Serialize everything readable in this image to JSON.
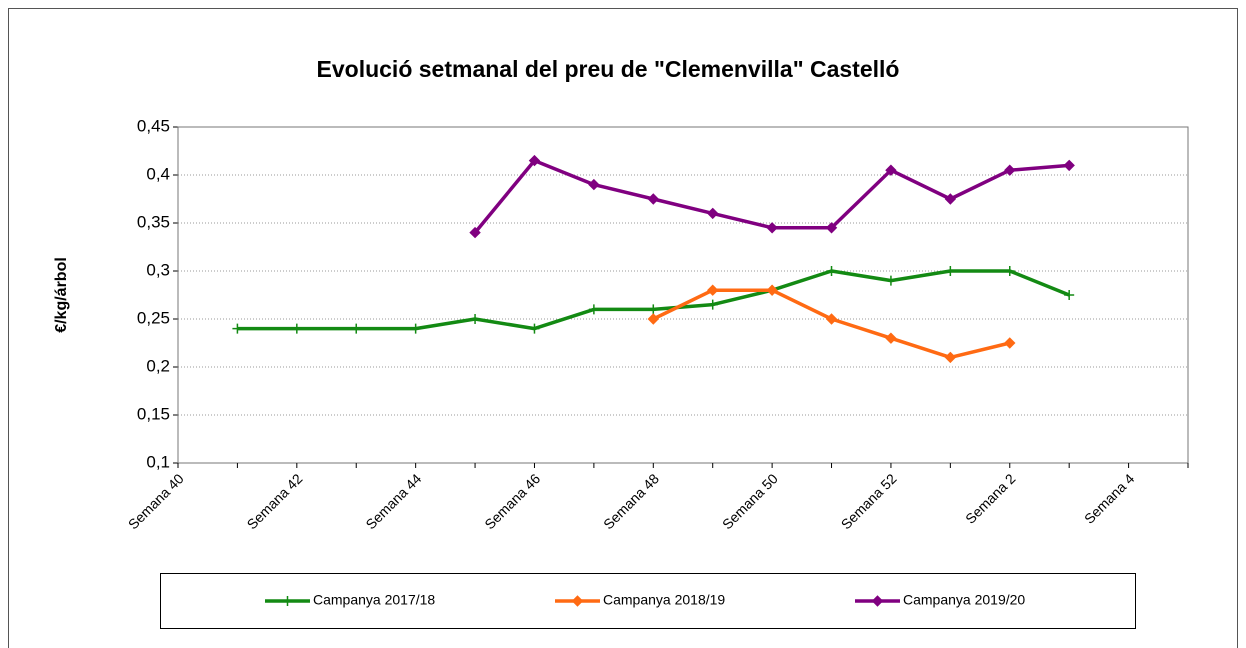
{
  "chart_data": {
    "type": "line",
    "title": "Evolució setmanal del preu de \"Clemenvilla\"    Castelló",
    "y_label": "€/kg/árbol",
    "categories": [
      "Semana 40",
      null,
      "Semana 42",
      null,
      "Semana 44",
      null,
      "Semana 46",
      null,
      "Semana 48",
      null,
      "Semana 50",
      null,
      "Semana 52",
      null,
      "Semana 2",
      null,
      "Semana 4",
      null
    ],
    "series": [
      {
        "name": "Campanya 2017/18",
        "color": "#138a13",
        "marker": "plus",
        "values": [
          null,
          0.24,
          0.24,
          0.24,
          0.24,
          0.25,
          0.24,
          0.26,
          0.26,
          0.265,
          0.28,
          0.3,
          0.29,
          0.3,
          0.3,
          0.275,
          null,
          null
        ]
      },
      {
        "name": "Campanya 2018/19",
        "color": "#ff6a13",
        "marker": "diamond",
        "values": [
          null,
          null,
          null,
          null,
          null,
          null,
          null,
          null,
          0.25,
          0.28,
          0.28,
          0.25,
          0.23,
          0.21,
          0.225,
          null,
          null,
          null
        ]
      },
      {
        "name": "Campanya 2019/20",
        "color": "#800080",
        "marker": "diamond",
        "values": [
          null,
          null,
          null,
          null,
          null,
          0.34,
          0.415,
          0.39,
          0.375,
          0.36,
          0.345,
          0.345,
          0.405,
          0.375,
          0.405,
          0.41,
          null,
          null
        ]
      }
    ],
    "ylim": [
      0.1,
      0.45
    ],
    "yticks": [
      {
        "value": 0.1,
        "label": "0,1"
      },
      {
        "value": 0.15,
        "label": "0,15"
      },
      {
        "value": 0.2,
        "label": "0,2"
      },
      {
        "value": 0.25,
        "label": "0,25"
      },
      {
        "value": 0.3,
        "label": "0,3"
      },
      {
        "value": 0.35,
        "label": "0,35"
      },
      {
        "value": 0.4,
        "label": "0,4"
      },
      {
        "value": 0.45,
        "label": "0,45"
      }
    ],
    "grid": true
  }
}
